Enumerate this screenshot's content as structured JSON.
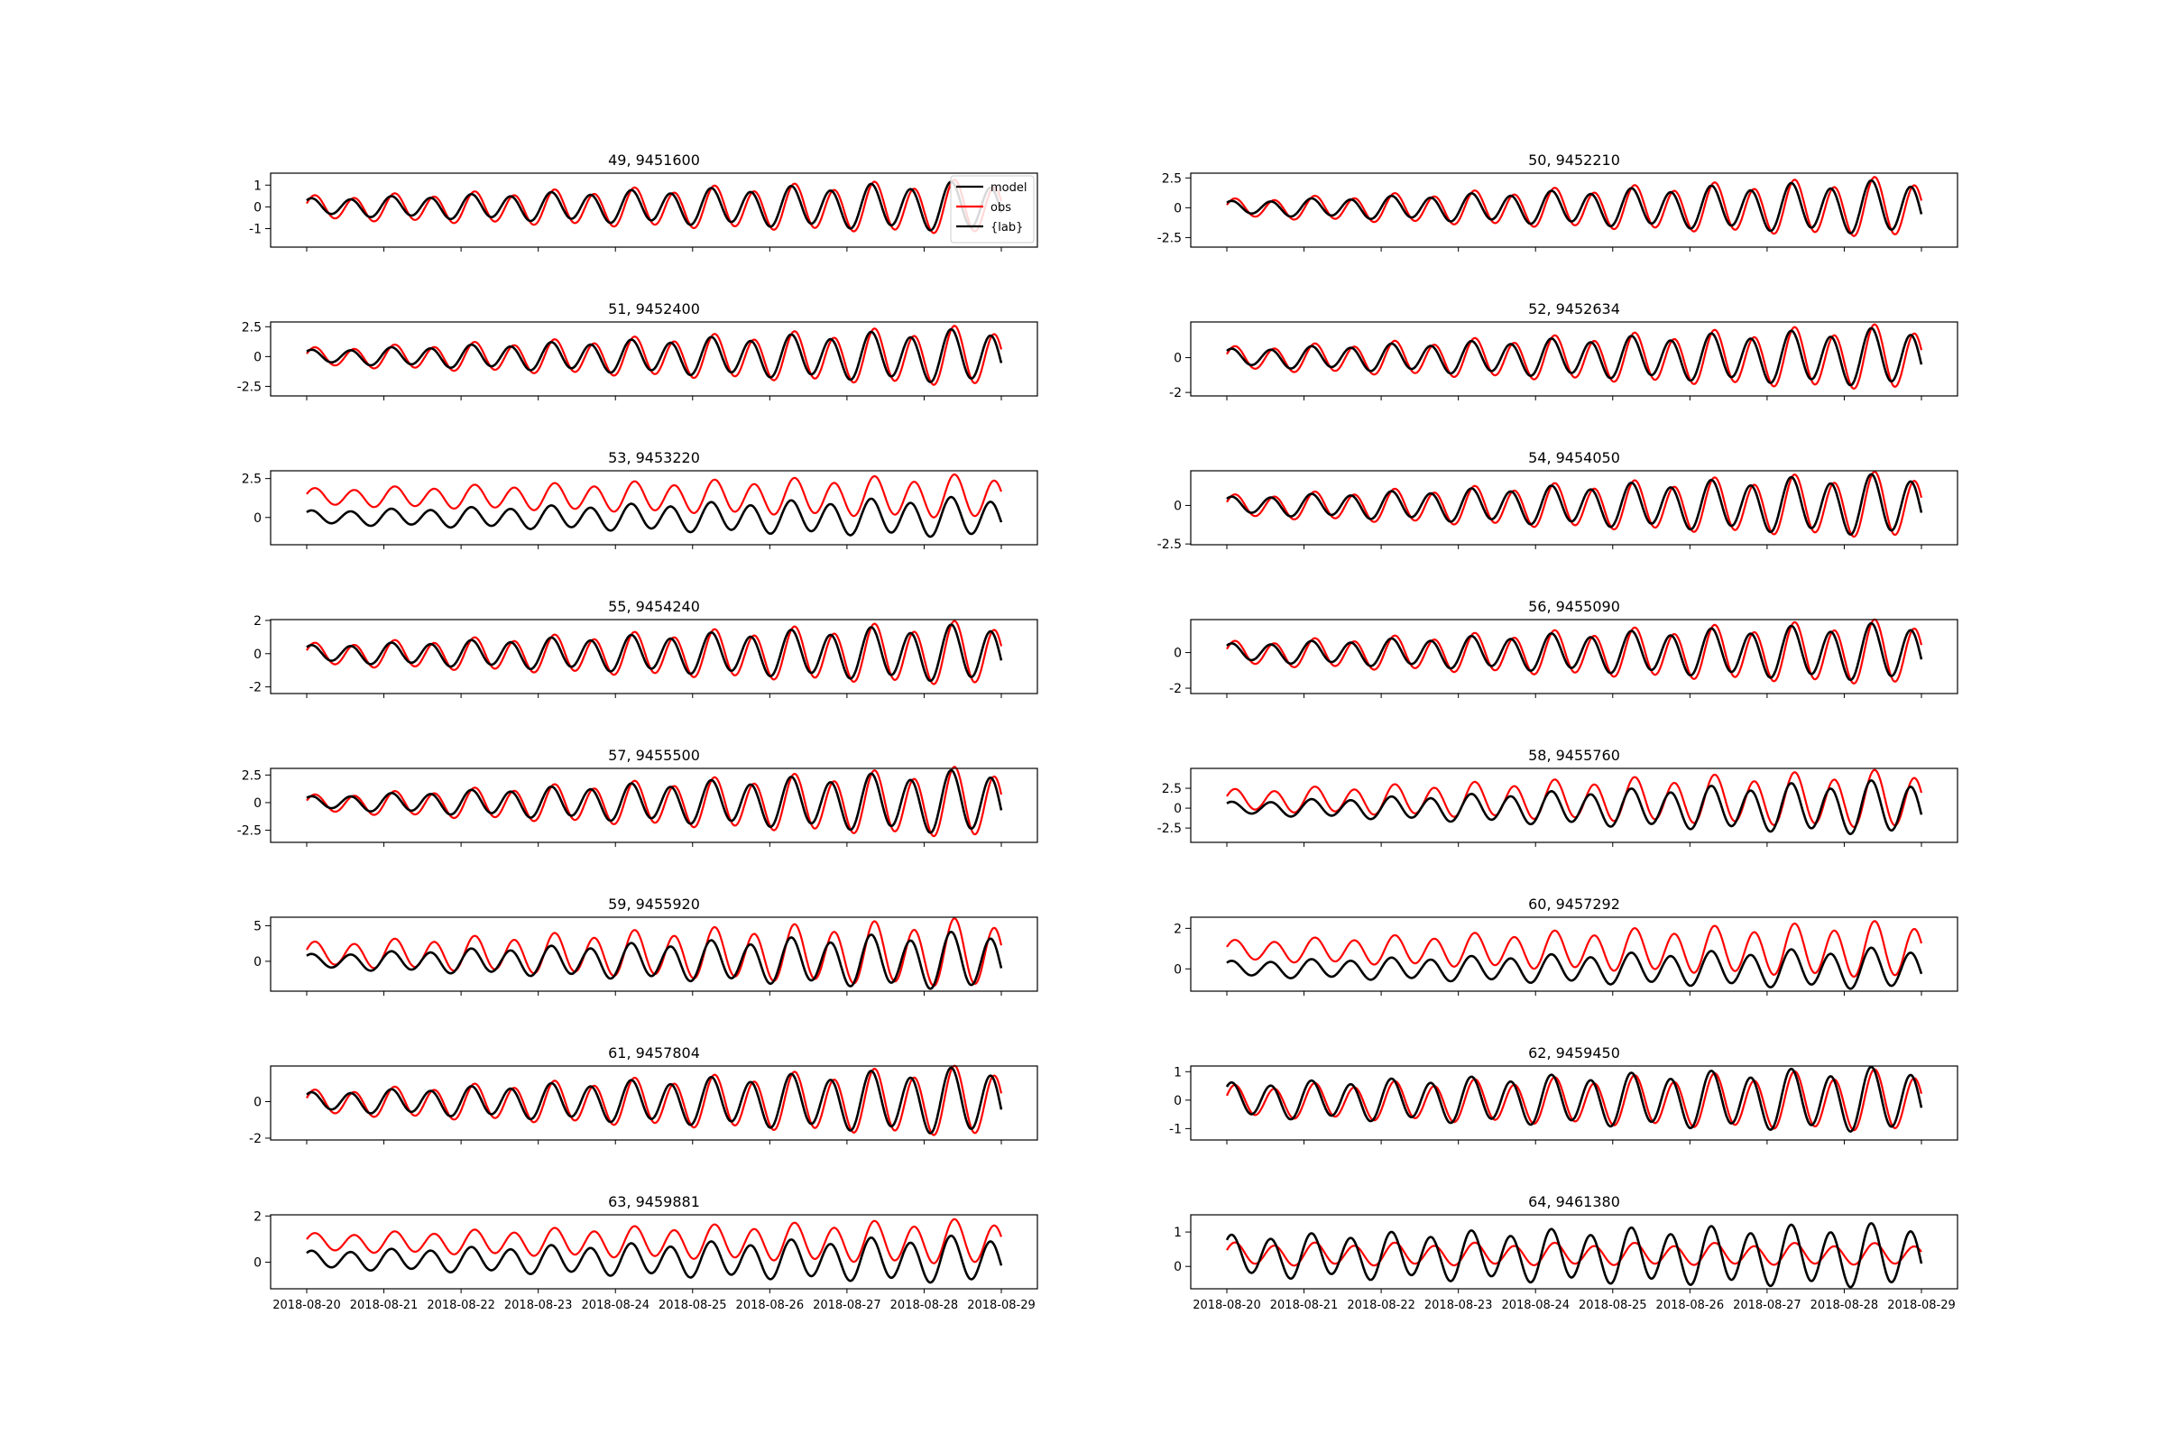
{
  "chart_data": [
    {
      "type": "line",
      "title": "49, 9451600",
      "yticks": [
        -1,
        0,
        1
      ],
      "ylim": [
        -1.85,
        1.55
      ],
      "model": {
        "mean": 0.0,
        "amp0": 0.35,
        "amp1": 1.05,
        "phase": 0.0
      },
      "obs": {
        "mean": -0.05,
        "amp0": 0.5,
        "amp1": 1.15,
        "phase": -0.55
      },
      "legend": {
        "location": "upper right",
        "entries": [
          {
            "label": "model",
            "color": "#000000"
          },
          {
            "label": "obs",
            "color": "#ff0000"
          },
          {
            "label": "{lab}",
            "color": "#000000"
          }
        ]
      }
    },
    {
      "type": "line",
      "title": "50, 9452210",
      "yticks": [
        -2.5,
        0.0,
        2.5
      ],
      "ylim": [
        -3.3,
        2.9
      ],
      "model": {
        "mean": 0.0,
        "amp0": 0.5,
        "amp1": 2.1,
        "phase": 0.0
      },
      "obs": {
        "mean": -0.05,
        "amp0": 0.7,
        "amp1": 2.35,
        "phase": -0.55
      }
    },
    {
      "type": "line",
      "title": "51, 9452400",
      "yticks": [
        -2.5,
        0.0,
        2.5
      ],
      "ylim": [
        -3.3,
        2.9
      ],
      "model": {
        "mean": 0.0,
        "amp0": 0.5,
        "amp1": 2.1,
        "phase": 0.0
      },
      "obs": {
        "mean": -0.05,
        "amp0": 0.7,
        "amp1": 2.35,
        "phase": -0.55
      }
    },
    {
      "type": "line",
      "title": "52, 9452634",
      "yticks": [
        -2,
        0
      ],
      "ylim": [
        -2.2,
        2.05
      ],
      "model": {
        "mean": 0.0,
        "amp0": 0.45,
        "amp1": 1.55,
        "phase": 0.0
      },
      "obs": {
        "mean": -0.05,
        "amp0": 0.6,
        "amp1": 1.75,
        "phase": -0.55
      }
    },
    {
      "type": "line",
      "title": "53, 9453220",
      "yticks": [
        0.0,
        2.5
      ],
      "ylim": [
        -1.75,
        3.0
      ],
      "model": {
        "mean": 0.0,
        "amp0": 0.4,
        "amp1": 1.2,
        "phase": 0.0
      },
      "obs": {
        "mean": 1.3,
        "amp0": 0.5,
        "amp1": 1.3,
        "phase": -0.55
      }
    },
    {
      "type": "line",
      "title": "54, 9454050",
      "yticks": [
        -2.5,
        0.0
      ],
      "ylim": [
        -2.55,
        2.25
      ],
      "model": {
        "mean": 0.0,
        "amp0": 0.5,
        "amp1": 1.85,
        "phase": 0.0
      },
      "obs": {
        "mean": -0.05,
        "amp0": 0.65,
        "amp1": 2.0,
        "phase": -0.55
      }
    },
    {
      "type": "line",
      "title": "55, 9454240",
      "yticks": [
        -2,
        0,
        2
      ],
      "ylim": [
        -2.4,
        2.05
      ],
      "model": {
        "mean": 0.0,
        "amp0": 0.45,
        "amp1": 1.6,
        "phase": 0.0
      },
      "obs": {
        "mean": -0.05,
        "amp0": 0.6,
        "amp1": 1.8,
        "phase": -0.55
      }
    },
    {
      "type": "line",
      "title": "56, 9455090",
      "yticks": [
        -2,
        0
      ],
      "ylim": [
        -2.3,
        1.85
      ],
      "model": {
        "mean": 0.0,
        "amp0": 0.45,
        "amp1": 1.5,
        "phase": 0.0
      },
      "obs": {
        "mean": -0.05,
        "amp0": 0.6,
        "amp1": 1.7,
        "phase": -0.55
      }
    },
    {
      "type": "line",
      "title": "57, 9455500",
      "yticks": [
        -2.5,
        0.0,
        2.5
      ],
      "ylim": [
        -3.6,
        3.1
      ],
      "model": {
        "mean": 0.0,
        "amp0": 0.5,
        "amp1": 2.7,
        "phase": 0.0
      },
      "obs": {
        "mean": -0.1,
        "amp0": 0.7,
        "amp1": 3.0,
        "phase": -0.55
      }
    },
    {
      "type": "line",
      "title": "58, 9455760",
      "yticks": [
        -2.5,
        0.0,
        2.5
      ],
      "ylim": [
        -4.3,
        5.0
      ],
      "model": {
        "mean": 0.0,
        "amp0": 0.7,
        "amp1": 3.2,
        "phase": 0.0
      },
      "obs": {
        "mean": 1.0,
        "amp0": 1.2,
        "amp1": 3.4,
        "phase": -0.55
      }
    },
    {
      "type": "line",
      "title": "59, 9455920",
      "yticks": [
        0,
        5
      ],
      "ylim": [
        -4.2,
        6.2
      ],
      "model": {
        "mean": 0.0,
        "amp0": 0.9,
        "amp1": 3.8,
        "phase": 0.0
      },
      "obs": {
        "mean": 1.0,
        "amp0": 1.5,
        "amp1": 4.5,
        "phase": -0.55
      }
    },
    {
      "type": "line",
      "title": "60, 9457292",
      "yticks": [
        0,
        2
      ],
      "ylim": [
        -1.1,
        2.55
      ],
      "model": {
        "mean": 0.0,
        "amp0": 0.35,
        "amp1": 0.95,
        "phase": 0.0
      },
      "obs": {
        "mean": 0.9,
        "amp0": 0.45,
        "amp1": 1.3,
        "phase": -0.55
      }
    },
    {
      "type": "line",
      "title": "61, 9457804",
      "yticks": [
        -2,
        0
      ],
      "ylim": [
        -2.1,
        1.95
      ],
      "model": {
        "mean": 0.0,
        "amp0": 0.45,
        "amp1": 1.7,
        "phase": 0.0
      },
      "obs": {
        "mean": -0.05,
        "amp0": 0.6,
        "amp1": 1.8,
        "phase": -0.55
      }
    },
    {
      "type": "line",
      "title": "62, 9459450",
      "yticks": [
        -1,
        0,
        1
      ],
      "ylim": [
        -1.4,
        1.2
      ],
      "model": {
        "mean": 0.0,
        "amp0": 0.55,
        "amp1": 1.05,
        "phase": 0.0
      },
      "obs": {
        "mean": -0.05,
        "amp0": 0.5,
        "amp1": 1.0,
        "phase": -0.55
      }
    },
    {
      "type": "line",
      "title": "63, 9459881",
      "yticks": [
        0,
        2
      ],
      "ylim": [
        -1.15,
        2.05
      ],
      "model": {
        "mean": 0.1,
        "amp0": 0.35,
        "amp1": 0.95,
        "phase": 0.0
      },
      "obs": {
        "mean": 0.85,
        "amp0": 0.35,
        "amp1": 0.9,
        "phase": -0.55
      }
    },
    {
      "type": "line",
      "title": "64, 9461380",
      "yticks": [
        0,
        1
      ],
      "ylim": [
        -0.65,
        1.5
      ],
      "model": {
        "mean": 0.3,
        "amp0": 0.55,
        "amp1": 0.85,
        "phase": 0.0
      },
      "obs": {
        "mean": 0.35,
        "amp0": 0.3,
        "amp1": 0.28,
        "phase": -0.55
      }
    }
  ],
  "x_axis": {
    "type": "date",
    "range": [
      "2018-08-20",
      "2018-08-29"
    ],
    "tick_labels": [
      "2018-08-20",
      "2018-08-21",
      "2018-08-22",
      "2018-08-23",
      "2018-08-24",
      "2018-08-25",
      "2018-08-26",
      "2018-08-27",
      "2018-08-28",
      "2018-08-29"
    ]
  },
  "series_colors": {
    "model": "#000000",
    "obs": "#ff0000"
  }
}
